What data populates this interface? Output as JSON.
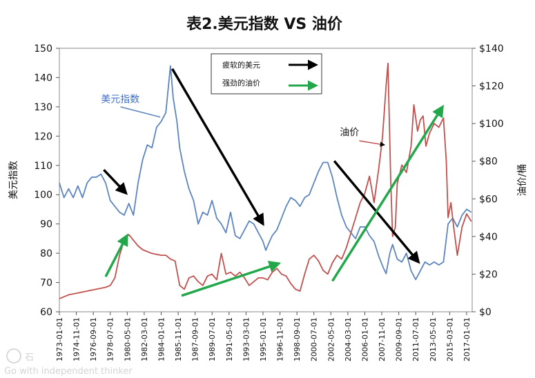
{
  "chart_data": {
    "type": "line",
    "title": "表2.美元指数 VS 油价",
    "ylabel_left": "美元指数",
    "ylabel_right": "油价/桶",
    "ylim_left": [
      60,
      150
    ],
    "ylim_right": [
      0,
      140
    ],
    "yticks_left": [
      "60",
      "70",
      "80",
      "90",
      "100",
      "110",
      "120",
      "130",
      "140",
      "150"
    ],
    "yticks_right": [
      "$0",
      "$20",
      "$40",
      "$60",
      "$80",
      "$100",
      "$120",
      "$140"
    ],
    "xticks": [
      "1973-01-01",
      "1974-11-01",
      "1976-09-01",
      "1978-07-01",
      "1980-05-01",
      "1982-03-01",
      "1984-01-01",
      "1985-11-01",
      "1987-09-01",
      "1989-07-01",
      "1991-05-01",
      "1993-03-01",
      "1995-01-01",
      "1996-11-01",
      "1998-09-01",
      "2000-07-01",
      "2002-05-01",
      "2004-03-01",
      "2006-01-01",
      "2007-11-01",
      "2009-09-01",
      "2011-07-01",
      "2013-05-01",
      "2015-03-01",
      "2017-01-01"
    ],
    "xlim": [
      1973.0,
      2017.6
    ],
    "series": [
      {
        "name": "美元指数",
        "axis": "left",
        "color": "#5b84bf",
        "points": [
          [
            1973.0,
            104
          ],
          [
            1973.5,
            99
          ],
          [
            1974.0,
            102
          ],
          [
            1974.5,
            99
          ],
          [
            1975.0,
            103
          ],
          [
            1975.5,
            99
          ],
          [
            1976.0,
            104
          ],
          [
            1976.5,
            106
          ],
          [
            1977.0,
            106
          ],
          [
            1977.5,
            107
          ],
          [
            1978.0,
            104
          ],
          [
            1978.5,
            98
          ],
          [
            1979.0,
            96
          ],
          [
            1979.5,
            94
          ],
          [
            1980.0,
            93
          ],
          [
            1980.5,
            97
          ],
          [
            1981.0,
            93
          ],
          [
            1981.5,
            104
          ],
          [
            1982.0,
            112
          ],
          [
            1982.5,
            117
          ],
          [
            1983.0,
            116
          ],
          [
            1983.5,
            123
          ],
          [
            1984.0,
            125
          ],
          [
            1984.5,
            128
          ],
          [
            1985.0,
            144
          ],
          [
            1985.3,
            133
          ],
          [
            1985.7,
            125
          ],
          [
            1986.0,
            116
          ],
          [
            1986.5,
            108
          ],
          [
            1987.0,
            102
          ],
          [
            1987.5,
            98
          ],
          [
            1988.0,
            90
          ],
          [
            1988.5,
            94
          ],
          [
            1989.0,
            93
          ],
          [
            1989.5,
            98
          ],
          [
            1990.0,
            92
          ],
          [
            1990.5,
            90
          ],
          [
            1991.0,
            87
          ],
          [
            1991.5,
            94
          ],
          [
            1992.0,
            86
          ],
          [
            1992.5,
            85
          ],
          [
            1993.0,
            88
          ],
          [
            1993.5,
            91
          ],
          [
            1994.0,
            90
          ],
          [
            1994.5,
            87
          ],
          [
            1995.0,
            84
          ],
          [
            1995.3,
            81
          ],
          [
            1995.7,
            84
          ],
          [
            1996.0,
            86
          ],
          [
            1996.5,
            88
          ],
          [
            1997.0,
            92
          ],
          [
            1997.5,
            96
          ],
          [
            1998.0,
            99
          ],
          [
            1998.5,
            98
          ],
          [
            1999.0,
            96
          ],
          [
            1999.5,
            99
          ],
          [
            2000.0,
            100
          ],
          [
            2000.5,
            104
          ],
          [
            2001.0,
            108
          ],
          [
            2001.5,
            111
          ],
          [
            2002.0,
            111
          ],
          [
            2002.5,
            106
          ],
          [
            2003.0,
            99
          ],
          [
            2003.5,
            93
          ],
          [
            2004.0,
            89
          ],
          [
            2004.5,
            87
          ],
          [
            2005.0,
            85
          ],
          [
            2005.5,
            89
          ],
          [
            2006.0,
            89
          ],
          [
            2006.5,
            86
          ],
          [
            2007.0,
            84
          ],
          [
            2007.5,
            79
          ],
          [
            2008.0,
            75
          ],
          [
            2008.3,
            73
          ],
          [
            2008.7,
            80
          ],
          [
            2009.0,
            83
          ],
          [
            2009.5,
            78
          ],
          [
            2010.0,
            77
          ],
          [
            2010.5,
            80
          ],
          [
            2011.0,
            74
          ],
          [
            2011.5,
            71
          ],
          [
            2012.0,
            74
          ],
          [
            2012.5,
            77
          ],
          [
            2013.0,
            76
          ],
          [
            2013.5,
            77
          ],
          [
            2014.0,
            76
          ],
          [
            2014.5,
            77
          ],
          [
            2015.0,
            90
          ],
          [
            2015.5,
            92
          ],
          [
            2016.0,
            89
          ],
          [
            2016.5,
            93
          ],
          [
            2017.0,
            95
          ],
          [
            2017.5,
            94
          ]
        ]
      },
      {
        "name": "油价",
        "axis": "right",
        "color": "#c0504d",
        "points": [
          [
            1973.0,
            7
          ],
          [
            1974.0,
            9
          ],
          [
            1975.0,
            10
          ],
          [
            1976.0,
            11
          ],
          [
            1977.0,
            12
          ],
          [
            1978.0,
            13
          ],
          [
            1978.5,
            14
          ],
          [
            1979.0,
            18
          ],
          [
            1979.5,
            30
          ],
          [
            1980.0,
            38
          ],
          [
            1980.5,
            41
          ],
          [
            1981.0,
            38
          ],
          [
            1981.5,
            35
          ],
          [
            1982.0,
            33
          ],
          [
            1983.0,
            31
          ],
          [
            1984.0,
            30
          ],
          [
            1984.5,
            30
          ],
          [
            1985.0,
            28
          ],
          [
            1985.5,
            27
          ],
          [
            1986.0,
            14
          ],
          [
            1986.5,
            12
          ],
          [
            1987.0,
            18
          ],
          [
            1987.5,
            19
          ],
          [
            1988.0,
            16
          ],
          [
            1988.5,
            14
          ],
          [
            1989.0,
            19
          ],
          [
            1989.5,
            20
          ],
          [
            1990.0,
            17
          ],
          [
            1990.5,
            31
          ],
          [
            1991.0,
            20
          ],
          [
            1991.5,
            21
          ],
          [
            1992.0,
            19
          ],
          [
            1992.5,
            21
          ],
          [
            1993.0,
            18
          ],
          [
            1993.5,
            14
          ],
          [
            1994.0,
            16
          ],
          [
            1994.5,
            18
          ],
          [
            1995.0,
            18
          ],
          [
            1995.5,
            17
          ],
          [
            1996.0,
            21
          ],
          [
            1996.5,
            23
          ],
          [
            1997.0,
            20
          ],
          [
            1997.5,
            19
          ],
          [
            1998.0,
            15
          ],
          [
            1998.5,
            12
          ],
          [
            1999.0,
            11
          ],
          [
            1999.5,
            20
          ],
          [
            2000.0,
            28
          ],
          [
            2000.5,
            30
          ],
          [
            2001.0,
            27
          ],
          [
            2001.5,
            22
          ],
          [
            2002.0,
            20
          ],
          [
            2002.5,
            26
          ],
          [
            2003.0,
            30
          ],
          [
            2003.5,
            28
          ],
          [
            2004.0,
            34
          ],
          [
            2004.5,
            42
          ],
          [
            2005.0,
            50
          ],
          [
            2005.5,
            58
          ],
          [
            2006.0,
            63
          ],
          [
            2006.5,
            72
          ],
          [
            2007.0,
            58
          ],
          [
            2007.5,
            76
          ],
          [
            2007.9,
            92
          ],
          [
            2008.3,
            120
          ],
          [
            2008.5,
            132
          ],
          [
            2008.8,
            70
          ],
          [
            2009.0,
            40
          ],
          [
            2009.3,
            45
          ],
          [
            2009.5,
            68
          ],
          [
            2010.0,
            78
          ],
          [
            2010.5,
            74
          ],
          [
            2011.0,
            88
          ],
          [
            2011.3,
            110
          ],
          [
            2011.7,
            96
          ],
          [
            2012.0,
            102
          ],
          [
            2012.3,
            104
          ],
          [
            2012.6,
            88
          ],
          [
            2013.0,
            95
          ],
          [
            2013.5,
            100
          ],
          [
            2014.0,
            98
          ],
          [
            2014.5,
            103
          ],
          [
            2014.8,
            80
          ],
          [
            2015.0,
            50
          ],
          [
            2015.3,
            58
          ],
          [
            2015.6,
            45
          ],
          [
            2016.0,
            30
          ],
          [
            2016.5,
            45
          ],
          [
            2017.0,
            52
          ],
          [
            2017.5,
            48
          ]
        ]
      }
    ],
    "annotations": [
      {
        "text": "美元指数",
        "color": "#3d6fc7",
        "at": [
          1977.5,
          131.5
        ],
        "axis": "left"
      },
      {
        "text": "油价",
        "color": "#111111",
        "at": [
          2003.3,
          120.2
        ],
        "axis": "left"
      }
    ],
    "legend": {
      "position": "top-center",
      "items": [
        {
          "label": "疲软的美元",
          "color": "#000000"
        },
        {
          "label": "强劲的油价",
          "color": "#22a84a"
        }
      ]
    },
    "watermark": {
      "brand": "石",
      "tagline": "Go with independent thinker"
    }
  }
}
